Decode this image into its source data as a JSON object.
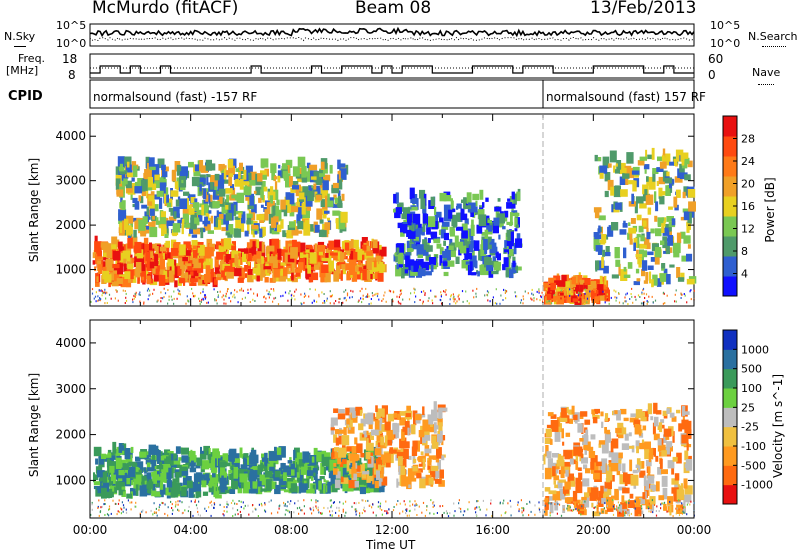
{
  "header": {
    "station": "McMurdo (fitACF)",
    "beam": "Beam 08",
    "date": "13/Feb/2013"
  },
  "left_labels": {
    "nsky": "N.Sky",
    "freq": "Freq.",
    "mhz": "[MHz]",
    "cpid": "CPID"
  },
  "right_labels": {
    "nsearch": "N.Search",
    "nave": "Nave"
  },
  "tick_labels": {
    "noise_left_top": "10^5",
    "noise_left_bottom": "10^0",
    "noise_right_top": "10^5",
    "noise_right_bottom": "10^0",
    "freq_top": "18",
    "freq_bottom": "8",
    "nave_top": "60",
    "nave_bottom": "0"
  },
  "cpid_segments": [
    {
      "label": "normalsound (fast) -157 RF",
      "start_hour": 0,
      "end_hour": 18
    },
    {
      "label": "normalsound (fast) 157 RF",
      "start_hour": 18,
      "end_hour": 24
    }
  ],
  "colors": {
    "power": [
      "#1010ff",
      "#2f5fd0",
      "#4f9a6a",
      "#7ac853",
      "#e8d020",
      "#f0a028",
      "#ff7a18",
      "#ff4a10",
      "#e81010"
    ],
    "velocity": [
      "#e81010",
      "#ff6a10",
      "#ff9a20",
      "#f0c040",
      "#bdbdbd",
      "#6cd040",
      "#3a9a5a",
      "#2a70a0",
      "#1030c0"
    ]
  },
  "chart_data": [
    {
      "type": "heatmap",
      "title": "",
      "ylabel": "Slant Range [km]",
      "xlabel": "",
      "xlim_hours": [
        0,
        24
      ],
      "ylim_km": [
        180,
        4500
      ],
      "yticks": [
        1000,
        2000,
        3000,
        4000
      ],
      "colorbar": {
        "label": "Power [dB]",
        "ticks": [
          4,
          8,
          12,
          16,
          20,
          24,
          28
        ],
        "range": [
          0,
          32
        ]
      },
      "echo_regions": [
        {
          "t0": 0.1,
          "t1": 5.0,
          "r0": 600,
          "r1": 1500,
          "level": "high"
        },
        {
          "t0": 5.0,
          "t1": 11.5,
          "r0": 700,
          "r1": 1500,
          "level": "high"
        },
        {
          "t0": 1.0,
          "t1": 10.0,
          "r0": 1700,
          "r1": 3300,
          "level": "mid"
        },
        {
          "t0": 12.0,
          "t1": 17.0,
          "r0": 800,
          "r1": 2600,
          "level": "low"
        },
        {
          "t0": 18.0,
          "t1": 20.5,
          "r0": 200,
          "r1": 700,
          "level": "high"
        },
        {
          "t0": 20.0,
          "t1": 23.8,
          "r0": 600,
          "r1": 3500,
          "level": "mid"
        }
      ]
    },
    {
      "type": "heatmap",
      "title": "",
      "ylabel": "Slant Range [km]",
      "xlabel": "Time UT",
      "xlim_hours": [
        0,
        24
      ],
      "ylim_km": [
        180,
        4500
      ],
      "yticks": [
        1000,
        2000,
        3000,
        4000
      ],
      "xtick_labels": [
        "00:00",
        "04:00",
        "08:00",
        "12:00",
        "16:00",
        "20:00",
        "00:00"
      ],
      "colorbar": {
        "label": "Velocity [m s^-1]",
        "ticks": [
          1000,
          500,
          100,
          25,
          -25,
          -100,
          -500,
          -1000
        ]
      },
      "echo_regions": [
        {
          "t0": 0.1,
          "t1": 5.0,
          "r0": 600,
          "r1": 1600,
          "level": "positive"
        },
        {
          "t0": 5.0,
          "t1": 11.5,
          "r0": 700,
          "r1": 1500,
          "level": "positive"
        },
        {
          "t0": 9.5,
          "t1": 14.0,
          "r0": 800,
          "r1": 2500,
          "level": "negative"
        },
        {
          "t0": 18.0,
          "t1": 23.8,
          "r0": 200,
          "r1": 2500,
          "level": "negative"
        }
      ]
    }
  ]
}
